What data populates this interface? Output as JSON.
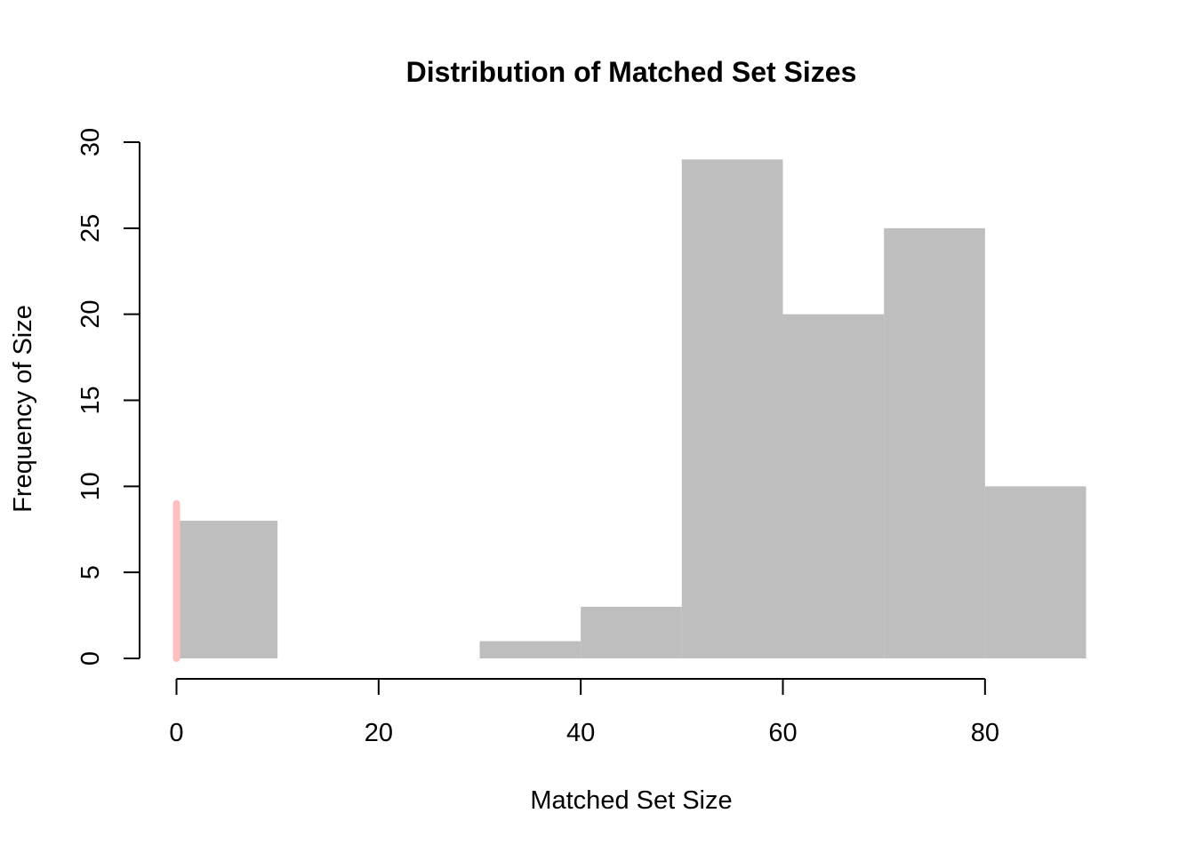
{
  "chart_data": {
    "type": "bar",
    "subtype": "histogram",
    "title": "Distribution of Matched Set Sizes",
    "xlabel": "Matched Set Size",
    "ylabel": "Frequency of Size",
    "xlim": [
      0,
      90
    ],
    "ylim": [
      0,
      30
    ],
    "xticks": [
      "0",
      "20",
      "40",
      "60",
      "80"
    ],
    "yticks": [
      "0",
      "5",
      "10",
      "15",
      "20",
      "25",
      "30"
    ],
    "bins": [
      {
        "start": 0,
        "end": 10,
        "count": 8
      },
      {
        "start": 10,
        "end": 20,
        "count": 0
      },
      {
        "start": 20,
        "end": 30,
        "count": 0
      },
      {
        "start": 30,
        "end": 40,
        "count": 1
      },
      {
        "start": 40,
        "end": 50,
        "count": 3
      },
      {
        "start": 50,
        "end": 60,
        "count": 29
      },
      {
        "start": 60,
        "end": 70,
        "count": 20
      },
      {
        "start": 70,
        "end": 80,
        "count": 25
      },
      {
        "start": 80,
        "end": 90,
        "count": 10
      }
    ],
    "bar_color": "#BEBEBE",
    "highlight_segment": {
      "x": 0,
      "y_start": 0,
      "y_end": 9,
      "color": "#FFBFBF"
    },
    "grid": false,
    "legend": "none"
  }
}
